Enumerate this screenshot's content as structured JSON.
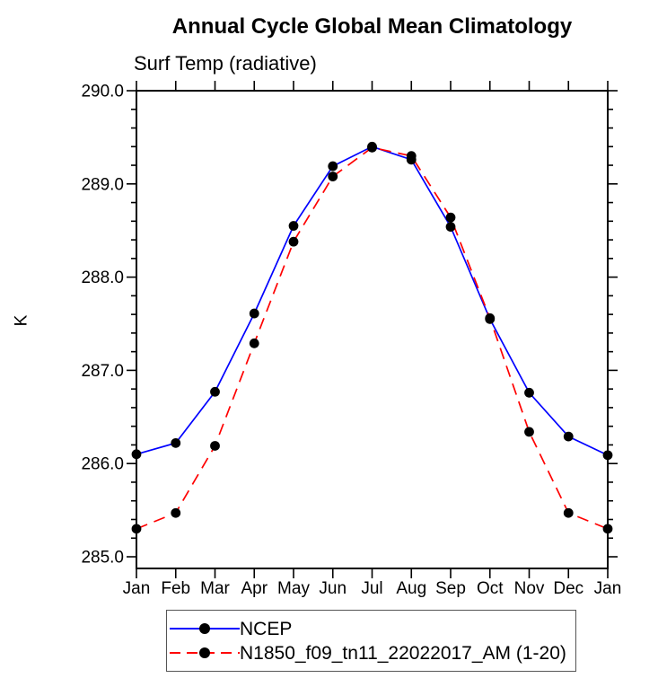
{
  "title": "Annual Cycle Global Mean Climatology",
  "subtitle": "Surf Temp (radiative)",
  "ylabel": "K",
  "colors": {
    "background": "#ffffff",
    "axis": "#000000",
    "text": "#000000",
    "ncep_line": "#0000ff",
    "model_line": "#ff0000",
    "marker": "#000000",
    "legend_border": "#555555"
  },
  "legend": {
    "entries": [
      {
        "label": "NCEP"
      },
      {
        "label": "N1850_f09_tn11_22022017_AM (1-20)"
      }
    ]
  },
  "chart_data": {
    "type": "line",
    "title": "Annual Cycle Global Mean Climatology",
    "subtitle": "Surf Temp (radiative)",
    "xlabel": "",
    "ylabel": "K",
    "categories": [
      "Jan",
      "Feb",
      "Mar",
      "Apr",
      "May",
      "Jun",
      "Jul",
      "Aug",
      "Sep",
      "Oct",
      "Nov",
      "Dec",
      "Jan"
    ],
    "ylim": [
      285.0,
      290.0
    ],
    "ytick_interval": 1.0,
    "yminor_interval": 0.2,
    "yticklabels": [
      "285.0",
      "286.0",
      "287.0",
      "288.0",
      "289.0",
      "290.0"
    ],
    "grid": false,
    "legend_position": "bottom",
    "series": [
      {
        "name": "NCEP",
        "color": "#0000ff",
        "line_style": "solid",
        "marker": "filled-circle",
        "marker_color": "#000000",
        "values": [
          286.1,
          286.22,
          286.77,
          287.61,
          288.55,
          289.19,
          289.4,
          289.26,
          288.54,
          287.55,
          286.76,
          286.29,
          286.09
        ]
      },
      {
        "name": "N1850_f09_tn11_22022017_AM (1-20)",
        "color": "#ff0000",
        "line_style": "dashed",
        "marker": "filled-circle",
        "marker_color": "#000000",
        "values": [
          285.3,
          285.47,
          286.19,
          287.29,
          288.38,
          289.08,
          289.39,
          289.3,
          288.64,
          287.56,
          286.34,
          285.47,
          285.3
        ]
      }
    ]
  }
}
